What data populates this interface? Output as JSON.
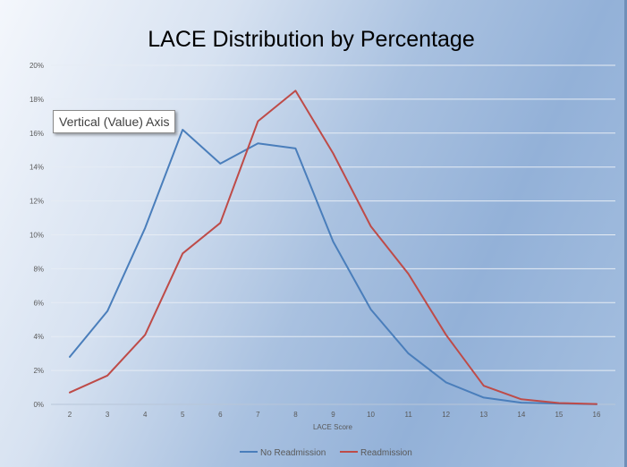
{
  "chart_data": {
    "type": "line",
    "title": "LACE Distribution by Percentage",
    "xlabel": "LACE Score",
    "ylabel": "",
    "categories": [
      "2",
      "3",
      "4",
      "5",
      "6",
      "7",
      "8",
      "9",
      "10",
      "11",
      "12",
      "13",
      "14",
      "15",
      "16"
    ],
    "ylim": [
      0,
      0.2
    ],
    "y_ticks": [
      "0%",
      "2%",
      "4%",
      "6%",
      "8%",
      "10%",
      "12%",
      "14%",
      "16%",
      "18%",
      "20%"
    ],
    "grid": true,
    "legend_position": "bottom",
    "series": [
      {
        "name": "No Readmission",
        "color": "#4a7ebb",
        "values": [
          0.028,
          0.055,
          0.104,
          0.162,
          0.142,
          0.154,
          0.151,
          0.096,
          0.056,
          0.03,
          0.013,
          0.004,
          0.001,
          0.0005,
          0.0001
        ]
      },
      {
        "name": "Readmission",
        "color": "#be4b48",
        "values": [
          0.007,
          0.017,
          0.041,
          0.089,
          0.107,
          0.167,
          0.185,
          0.148,
          0.105,
          0.077,
          0.041,
          0.011,
          0.003,
          0.0008,
          0.0002
        ]
      }
    ]
  },
  "tooltip": {
    "text": "Vertical (Value) Axis"
  }
}
